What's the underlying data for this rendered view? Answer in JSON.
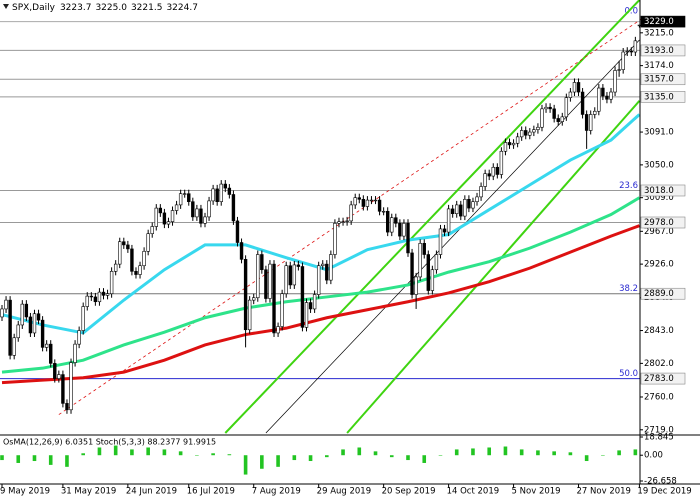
{
  "chart_data": {
    "type": "candlestick",
    "header": {
      "symbol": "SPX,Daily",
      "ohlc": [
        "3223.7",
        "3225.0",
        "3221.5",
        "3224.7"
      ]
    },
    "categories": [
      "9 May 2019",
      null,
      null,
      null,
      null,
      null,
      null,
      null,
      null,
      null,
      null,
      null,
      null,
      null,
      null,
      "31 May 2019",
      null,
      null,
      null,
      null,
      null,
      null,
      null,
      null,
      null,
      null,
      null,
      null,
      null,
      null,
      null,
      "24 Jun 2019",
      null,
      null,
      null,
      null,
      null,
      null,
      null,
      null,
      null,
      null,
      null,
      null,
      null,
      null,
      "16 Jul 2019",
      null,
      null,
      null,
      null,
      null,
      null,
      null,
      null,
      null,
      null,
      null,
      null,
      null,
      null,
      null,
      "7 Aug 2019",
      null,
      null,
      null,
      null,
      null,
      null,
      null,
      null,
      null,
      null,
      null,
      null,
      null,
      null,
      null,
      "29 Aug 2019",
      null,
      null,
      null,
      null,
      null,
      null,
      null,
      null,
      null,
      null,
      null,
      null,
      null,
      null,
      null,
      "20 Sep 2019",
      null,
      null,
      null,
      null,
      null,
      null,
      null,
      null,
      null,
      null,
      null,
      null,
      null,
      null,
      null,
      "14 Oct 2019",
      null,
      null,
      null,
      null,
      null,
      null,
      null,
      null,
      null,
      null,
      null,
      null,
      null,
      null,
      null,
      "5 Nov 2019",
      null,
      null,
      null,
      null,
      null,
      null,
      null,
      null,
      null,
      null,
      null,
      null,
      null,
      null,
      null,
      "27 Nov 2019",
      null,
      null,
      null,
      null,
      null,
      null,
      null,
      null,
      null,
      null,
      null,
      null,
      null,
      null,
      "19 Dec 2019"
    ],
    "open": [
      2860,
      2870,
      2881,
      2812,
      2834,
      2850,
      2876,
      2860,
      2840,
      2864,
      2856,
      2822,
      2826,
      2802,
      2783,
      2788,
      2752,
      2744,
      2803,
      2826,
      2843,
      2873,
      2886,
      2885,
      2879,
      2891,
      2887,
      2889,
      2917,
      2926,
      2954,
      2950,
      2945,
      2917,
      2913,
      2924,
      2942,
      2964,
      2973,
      2996,
      2990,
      2976,
      2979,
      2993,
      3000,
      3014,
      3014,
      3004,
      2985,
      2995,
      2977,
      2985,
      3005,
      3020,
      3004,
      3026,
      3021,
      3013,
      2980,
      2953,
      2932,
      2844,
      2881,
      2884,
      2938,
      2919,
      2883,
      2926,
      2840,
      2848,
      2889,
      2924,
      2900,
      2925,
      2923,
      2847,
      2878,
      2870,
      2888,
      2924,
      2926,
      2906,
      2938,
      2977,
      2979,
      2979,
      2980,
      3000,
      3009,
      3007,
      2998,
      3006,
      3006,
      3006,
      2992,
      2992,
      2966,
      2984,
      2977,
      2961,
      2977,
      2940,
      2888,
      2910,
      2952,
      2938,
      2893,
      2919,
      2938,
      2970,
      2966,
      2995,
      2989,
      3000,
      2986,
      3007,
      2996,
      3004,
      3010,
      3023,
      3039,
      3036,
      3047,
      3038,
      3067,
      3078,
      3075,
      3077,
      3085,
      3093,
      3087,
      3091,
      3094,
      3097,
      3120,
      3122,
      3120,
      3108,
      3104,
      3110,
      3134,
      3141,
      3153,
      3141,
      3113,
      3093,
      3113,
      3117,
      3146,
      3136,
      3132,
      3141,
      3168,
      3169,
      3191,
      3192,
      3191,
      3223.7
    ],
    "high": [
      2875,
      2886,
      2886,
      2839,
      2855,
      2881,
      2881,
      2865,
      2869,
      2869,
      2861,
      2831,
      2831,
      2807,
      2793,
      2793,
      2757,
      2808,
      2831,
      2848,
      2878,
      2891,
      2891,
      2890,
      2896,
      2896,
      2894,
      2922,
      2931,
      2959,
      2959,
      2955,
      2950,
      2922,
      2929,
      2947,
      2969,
      2978,
      3001,
      3001,
      2995,
      2984,
      2998,
      3005,
      3019,
      3019,
      3019,
      3009,
      3000,
      3000,
      2990,
      3010,
      3025,
      3025,
      3031,
      3031,
      3026,
      3018,
      2985,
      2958,
      2937,
      2886,
      2889,
      2943,
      2943,
      2924,
      2931,
      2931,
      2853,
      2894,
      2929,
      2929,
      2930,
      2930,
      2928,
      2883,
      2883,
      2893,
      2929,
      2931,
      2931,
      2943,
      2982,
      2984,
      2984,
      2985,
      3005,
      3014,
      3014,
      3012,
      3011,
      3011,
      3011,
      3011,
      2997,
      2997,
      2989,
      2989,
      2982,
      2982,
      2982,
      2945,
      2915,
      2957,
      2957,
      2943,
      2924,
      2943,
      2975,
      2975,
      3000,
      3000,
      3005,
      3005,
      3012,
      3012,
      3009,
      3015,
      3028,
      3044,
      3044,
      3052,
      3052,
      3072,
      3083,
      3083,
      3082,
      3090,
      3098,
      3098,
      3096,
      3099,
      3102,
      3125,
      3127,
      3127,
      3125,
      3113,
      3115,
      3139,
      3146,
      3158,
      3158,
      3146,
      3118,
      3118,
      3122,
      3151,
      3151,
      3141,
      3146,
      3173,
      3180,
      3196,
      3197,
      3197,
      3210,
      3225
    ],
    "low": [
      2855,
      2865,
      2807,
      2807,
      2829,
      2845,
      2855,
      2835,
      2835,
      2851,
      2817,
      2817,
      2797,
      2778,
      2778,
      2747,
      2739,
      2739,
      2798,
      2821,
      2838,
      2868,
      2880,
      2874,
      2874,
      2882,
      2882,
      2884,
      2912,
      2921,
      2945,
      2940,
      2912,
      2908,
      2908,
      2919,
      2937,
      2959,
      2968,
      2985,
      2971,
      2971,
      2974,
      2988,
      2995,
      3009,
      2999,
      2980,
      2980,
      2972,
      2972,
      2980,
      3000,
      2999,
      2999,
      3016,
      3008,
      2975,
      2948,
      2927,
      2822,
      2839,
      2876,
      2879,
      2914,
      2878,
      2878,
      2835,
      2835,
      2843,
      2884,
      2895,
      2895,
      2918,
      2842,
      2842,
      2865,
      2865,
      2883,
      2919,
      2901,
      2901,
      2933,
      2972,
      2974,
      2974,
      2975,
      2995,
      3002,
      2993,
      2993,
      3001,
      3001,
      2987,
      2987,
      2961,
      2961,
      2972,
      2956,
      2956,
      2935,
      2883,
      2870,
      2905,
      2933,
      2888,
      2888,
      2914,
      2933,
      2961,
      2961,
      2984,
      2984,
      2981,
      2981,
      2991,
      2991,
      2999,
      3005,
      3018,
      3031,
      3031,
      3033,
      3033,
      3062,
      3070,
      3070,
      3072,
      3080,
      3082,
      3082,
      3086,
      3089,
      3092,
      3115,
      3115,
      3103,
      3099,
      3099,
      3105,
      3129,
      3136,
      3136,
      3108,
      3070,
      3088,
      3108,
      3112,
      3131,
      3127,
      3127,
      3136,
      3160,
      3164,
      3186,
      3186,
      3186,
      3221.5
    ],
    "close": [
      2870,
      2881,
      2812,
      2834,
      2850,
      2876,
      2860,
      2840,
      2864,
      2856,
      2822,
      2826,
      2802,
      2783,
      2788,
      2752,
      2744,
      2803,
      2826,
      2843,
      2873,
      2886,
      2885,
      2879,
      2891,
      2887,
      2889,
      2917,
      2926,
      2954,
      2950,
      2945,
      2917,
      2913,
      2924,
      2942,
      2964,
      2973,
      2996,
      2990,
      2976,
      2979,
      2993,
      3000,
      3014,
      3014,
      3004,
      2985,
      2995,
      2977,
      2985,
      3005,
      3020,
      3004,
      3026,
      3021,
      3013,
      2980,
      2953,
      2932,
      2844,
      2881,
      2884,
      2938,
      2919,
      2883,
      2926,
      2840,
      2848,
      2889,
      2924,
      2900,
      2925,
      2923,
      2847,
      2878,
      2870,
      2888,
      2924,
      2926,
      2906,
      2938,
      2977,
      2979,
      2979,
      2980,
      3000,
      3009,
      3007,
      2998,
      3006,
      3006,
      3006,
      2992,
      2992,
      2966,
      2984,
      2977,
      2961,
      2977,
      2940,
      2888,
      2910,
      2952,
      2938,
      2893,
      2919,
      2938,
      2970,
      2966,
      2995,
      2989,
      3000,
      2986,
      3007,
      2996,
      3004,
      3010,
      3023,
      3039,
      3036,
      3047,
      3038,
      3067,
      3078,
      3075,
      3077,
      3085,
      3093,
      3087,
      3091,
      3094,
      3097,
      3120,
      3122,
      3120,
      3108,
      3104,
      3110,
      3134,
      3141,
      3153,
      3141,
      3113,
      3093,
      3113,
      3117,
      3146,
      3136,
      3132,
      3141,
      3168,
      3169,
      3191,
      3192,
      3191,
      3205,
      3224.7
    ],
    "up_color": "#ffffff",
    "down_color": "#000000",
    "ylim": [
      2715,
      3256
    ],
    "yticks": [
      {
        "value": 3215,
        "label": "3215.0"
      },
      {
        "value": 3174,
        "label": "3174.0"
      },
      {
        "value": 3091,
        "label": "3091.0"
      },
      {
        "value": 3050,
        "label": "3050.0"
      },
      {
        "value": 3009,
        "label": "3009.0"
      },
      {
        "value": 2967,
        "label": "2967.0"
      },
      {
        "value": 2926,
        "label": "2926.0"
      },
      {
        "value": 2884,
        "label": "2884.0"
      },
      {
        "value": 2843,
        "label": "2843.0"
      },
      {
        "value": 2802,
        "label": "2802.0"
      },
      {
        "value": 2760,
        "label": "2760.0"
      },
      {
        "value": 2719,
        "label": "2719.0"
      }
    ],
    "ma": {
      "x": [
        0,
        10,
        20,
        30,
        40,
        50,
        60,
        70,
        80,
        90,
        100,
        110,
        120,
        130,
        140,
        150,
        157
      ],
      "series": [
        {
          "color": "#38d8ee",
          "values": [
            2863,
            2850,
            2840,
            2881,
            2919,
            2950,
            2950,
            2934,
            2919,
            2944,
            2956,
            2963,
            2994,
            3025,
            3056,
            3081,
            3113
          ]
        },
        {
          "color": "#2ee38a",
          "values": [
            2791,
            2796,
            2806,
            2825,
            2841,
            2859,
            2871,
            2879,
            2885,
            2891,
            2900,
            2916,
            2929,
            2946,
            2966,
            2988,
            3009
          ]
        },
        {
          "color": "#dd1111",
          "values": [
            2778,
            2781,
            2784,
            2791,
            2806,
            2825,
            2838,
            2846,
            2859,
            2869,
            2879,
            2890,
            2904,
            2921,
            2941,
            2961,
            2974
          ]
        }
      ]
    },
    "trendlines": [
      {
        "color": "#3fd411",
        "dash": false,
        "points": [
          [
            55,
            2715
          ],
          [
            157,
            3256
          ]
        ]
      },
      {
        "color": "#3fd411",
        "dash": false,
        "points": [
          [
            85,
            2715
          ],
          [
            157,
            3130
          ]
        ]
      },
      {
        "color": "#000000",
        "dash": false,
        "points": [
          [
            65,
            2715
          ],
          [
            157,
            3206
          ]
        ]
      },
      {
        "color": "#dd1111",
        "dash": true,
        "points": [
          [
            14,
            2738
          ],
          [
            158,
            3234
          ]
        ]
      }
    ],
    "levels": [
      {
        "value": 3229,
        "label": "3229.0",
        "current": true,
        "color": "#aaaaaa"
      },
      {
        "value": 3193,
        "label": "3193.0",
        "current": false,
        "color": "#999999"
      },
      {
        "value": 3157,
        "label": "3157.0",
        "current": false,
        "color": "#999999"
      },
      {
        "value": 3135,
        "label": "3135.0",
        "current": false,
        "color": "#999999"
      },
      {
        "value": 3018,
        "label": "3018.0",
        "current": false,
        "color": "#999999"
      },
      {
        "value": 2978,
        "label": "2978.0",
        "current": false,
        "color": "#999999"
      },
      {
        "value": 2889,
        "label": "2889.0",
        "current": false,
        "color": "#777777"
      },
      {
        "value": 2783,
        "label": "2783.0",
        "current": false,
        "color": "#2a2ad0"
      }
    ],
    "fib": [
      {
        "label": "0.0",
        "price": 3236
      },
      {
        "label": "23.6",
        "price": 3018
      },
      {
        "label": "38.2",
        "price": 2889
      },
      {
        "label": "50.0",
        "price": 2783
      }
    ],
    "osma": {
      "label": "OsMA(12,26,9) 6.0351 Stoch(5,3,3) 88.2377 91.9915",
      "color": "#22c422",
      "x": [
        0,
        4,
        8,
        12,
        16,
        20,
        24,
        28,
        32,
        36,
        40,
        44,
        48,
        52,
        56,
        60,
        64,
        68,
        72,
        76,
        80,
        84,
        88,
        92,
        96,
        100,
        104,
        108,
        112,
        116,
        120,
        124,
        128,
        132,
        136,
        140,
        144,
        148,
        152,
        156
      ],
      "values": [
        -5,
        -8,
        -6,
        -10,
        -12,
        2,
        8,
        10,
        6,
        8,
        6,
        4,
        0,
        2,
        1,
        -20,
        -14,
        -12,
        -5,
        -6,
        -2,
        6,
        8,
        4,
        -2,
        -5,
        -8,
        0,
        6,
        7,
        8,
        9,
        6,
        5,
        4,
        3,
        -6,
        0,
        5,
        6
      ],
      "ylim": [
        -26.658,
        18.845
      ],
      "yticks": [
        18.845,
        {
          "value": 0,
          "label": "0.00"
        },
        -26.658
      ]
    }
  }
}
